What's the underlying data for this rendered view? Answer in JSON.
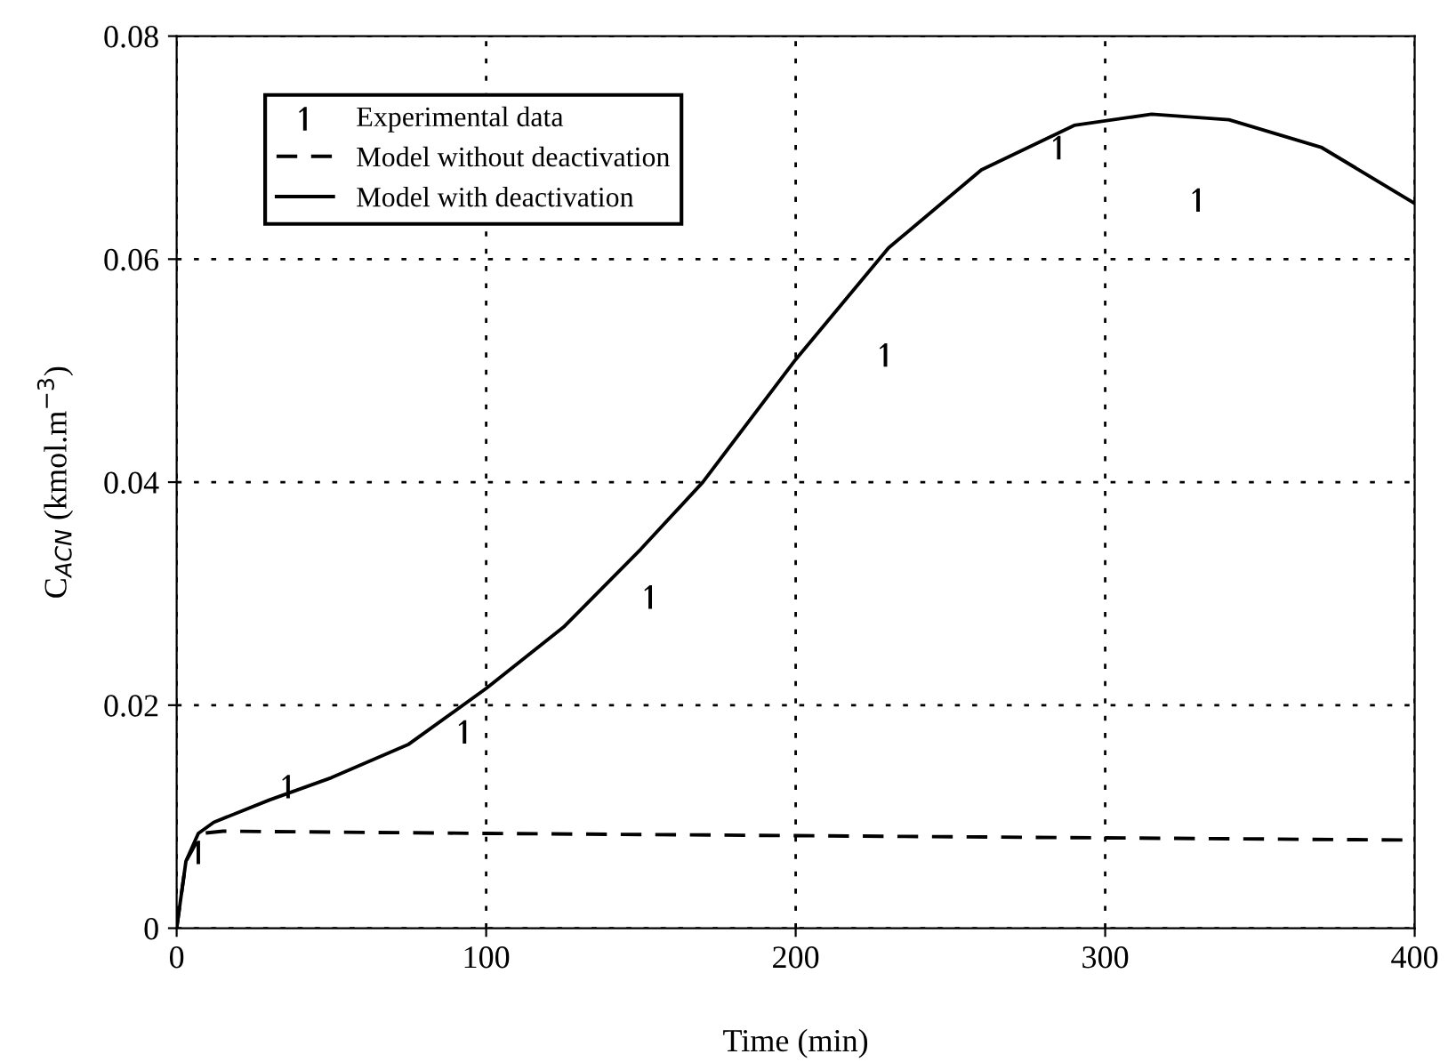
{
  "chart_data": {
    "type": "line",
    "xlabel": "Time (min)",
    "ylabel": "C$_{ACN}$ (kmol.m$^{−3}$)",
    "xlim": [
      0,
      400
    ],
    "xticks": [
      0,
      100,
      200,
      300,
      400
    ],
    "ylim": [
      0,
      0.08
    ],
    "yticks": [
      0,
      0.02,
      0.04,
      0.06,
      0.08
    ],
    "grid": true,
    "legend": "top left",
    "series": [
      {
        "name": "Experimental data",
        "type": "scatter",
        "color": "#000000",
        "x": [
          7,
          36,
          93,
          153,
          229,
          285,
          330
        ],
        "values": [
          0.0068,
          0.0127,
          0.0176,
          0.0297,
          0.0514,
          0.07,
          0.0653
        ]
      },
      {
        "name": "Model without deactivation",
        "line_style": "dashed",
        "color": "#000000",
        "x": [
          0,
          3,
          8,
          15,
          100,
          200,
          300,
          400
        ],
        "values": [
          0,
          0.006,
          0.0085,
          0.0087,
          0.0085,
          0.0083,
          0.0081,
          0.0079
        ]
      },
      {
        "name": "Model with deactivation",
        "type": "line",
        "line_style": "solid",
        "color": "#000000",
        "x": [
          0,
          3,
          7,
          12,
          30,
          50,
          75,
          100,
          125,
          150,
          170,
          200,
          230,
          260,
          290,
          315,
          340,
          370,
          400
        ],
        "values": [
          0,
          0.006,
          0.0085,
          0.0095,
          0.0115,
          0.0135,
          0.0165,
          0.0215,
          0.027,
          0.034,
          0.04,
          0.051,
          0.061,
          0.068,
          0.072,
          0.073,
          0.0725,
          0.07,
          0.065
        ]
      }
    ]
  }
}
